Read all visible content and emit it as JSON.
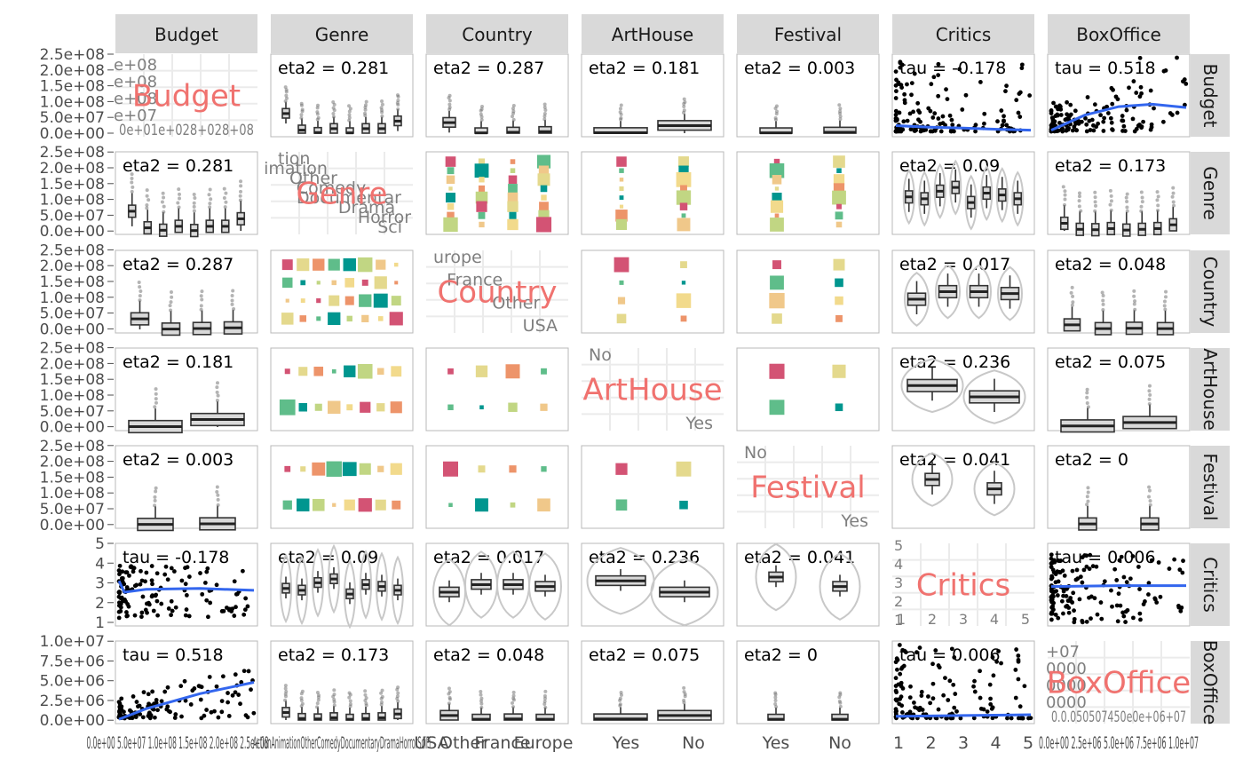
{
  "chart_data": {
    "type": "scatter",
    "chart_kind": "generalized pairs plot (7x7 matrix)",
    "variables": [
      "Budget",
      "Genre",
      "Country",
      "ArtHouse",
      "Festival",
      "Critics",
      "BoxOffice"
    ],
    "levels": {
      "Genre": [
        "Action",
        "Animation",
        "Other",
        "Comedy",
        "Documentary",
        "Drama",
        "Horror",
        "SciFi"
      ],
      "Genre_visible_labels": [
        "tion",
        "imation",
        "Other",
        "Comedy",
        "Documentar",
        "Drama",
        "Horror",
        "Sci"
      ],
      "Country": [
        "Europe",
        "France",
        "Other",
        "USA"
      ],
      "Country_visible_labels": [
        "urope",
        "France",
        "Other",
        "USA"
      ],
      "ArtHouse": [
        "No",
        "Yes"
      ],
      "Festival": [
        "No",
        "Yes"
      ]
    },
    "y_ticks": {
      "Budget": [
        "2.5e+08",
        "2.0e+08",
        "1.5e+08",
        "1.0e+08",
        "5.0e+07",
        "0.0e+00"
      ],
      "Critics": [
        "5",
        "4",
        "3",
        "2",
        "1"
      ],
      "BoxOffice": [
        "1.0e+07",
        "7.5e+06",
        "5.0e+06",
        "2.5e+06",
        "0.0e+00"
      ]
    },
    "x_ticks": {
      "Budget": "0.0e+00  5.0e+07  1.0e+08  1.5e+08  2.0e+08  2.5e+08",
      "Genre": "ActionAnimationOtherComedyDocumentaryDramaHorrorSciFi",
      "Country": [
        "USA",
        "Other",
        "France",
        "Europe"
      ],
      "ArtHouse": [
        "Yes",
        "No"
      ],
      "Festival": [
        "Yes",
        "No"
      ],
      "Critics": [
        "1",
        "2",
        "3",
        "4",
        "5"
      ],
      "BoxOffice": "0.0e+00  2.5e+06  5.0e+06  7.5e+06  1.0e+07"
    },
    "diag_mini_labels": {
      "Budget_y": [
        "e+08",
        "e+08",
        "e+08",
        "e+07"
      ],
      "Budget_x": "0e+01e+028+028+08",
      "BoxOffice_y": [
        "+07",
        "0000",
        "0000",
        "0000"
      ],
      "BoxOffice_x": "0.0.050507450e0e+06+07",
      "Critics_y": [
        "5",
        "4",
        "3",
        "2",
        "1"
      ],
      "Critics_x": [
        "1",
        "2",
        "3",
        "4",
        "5"
      ]
    },
    "pair_stats": [
      {
        "row": "Budget",
        "col": "Genre",
        "label": "eta2 = 0.281"
      },
      {
        "row": "Budget",
        "col": "Country",
        "label": "eta2 = 0.287"
      },
      {
        "row": "Budget",
        "col": "ArtHouse",
        "label": "eta2 = 0.181"
      },
      {
        "row": "Budget",
        "col": "Festival",
        "label": "eta2 = 0.003"
      },
      {
        "row": "Budget",
        "col": "Critics",
        "label": "tau = -0.178"
      },
      {
        "row": "Budget",
        "col": "BoxOffice",
        "label": "tau = 0.518"
      },
      {
        "row": "Genre",
        "col": "Budget",
        "label": "eta2 = 0.281"
      },
      {
        "row": "Genre",
        "col": "Critics",
        "label": "eta2 = 0.09"
      },
      {
        "row": "Genre",
        "col": "BoxOffice",
        "label": "eta2 = 0.173"
      },
      {
        "row": "Country",
        "col": "Budget",
        "label": "eta2 = 0.287"
      },
      {
        "row": "Country",
        "col": "Critics",
        "label": "eta2 = 0.017"
      },
      {
        "row": "Country",
        "col": "BoxOffice",
        "label": "eta2 = 0.048"
      },
      {
        "row": "ArtHouse",
        "col": "Budget",
        "label": "eta2 = 0.181"
      },
      {
        "row": "ArtHouse",
        "col": "Critics",
        "label": "eta2 = 0.236"
      },
      {
        "row": "ArtHouse",
        "col": "BoxOffice",
        "label": "eta2 = 0.075"
      },
      {
        "row": "Festival",
        "col": "Budget",
        "label": "eta2 = 0.003"
      },
      {
        "row": "Festival",
        "col": "Critics",
        "label": "eta2 = 0.041"
      },
      {
        "row": "Festival",
        "col": "BoxOffice",
        "label": "eta2 = 0"
      },
      {
        "row": "Critics",
        "col": "Budget",
        "label": "tau = -0.178"
      },
      {
        "row": "Critics",
        "col": "Genre",
        "label": "eta2 = 0.09"
      },
      {
        "row": "Critics",
        "col": "Country",
        "label": "eta2 = 0.017"
      },
      {
        "row": "Critics",
        "col": "ArtHouse",
        "label": "eta2 = 0.236"
      },
      {
        "row": "Critics",
        "col": "Festival",
        "label": "eta2 = 0.041"
      },
      {
        "row": "Critics",
        "col": "BoxOffice",
        "label": "tau = 0.006"
      },
      {
        "row": "BoxOffice",
        "col": "Budget",
        "label": "tau = 0.518"
      },
      {
        "row": "BoxOffice",
        "col": "Genre",
        "label": "eta2 = 0.173"
      },
      {
        "row": "BoxOffice",
        "col": "Country",
        "label": "eta2 = 0.048"
      },
      {
        "row": "BoxOffice",
        "col": "ArtHouse",
        "label": "eta2 = 0.075"
      },
      {
        "row": "BoxOffice",
        "col": "Festival",
        "label": "eta2 = 0"
      },
      {
        "row": "BoxOffice",
        "col": "Critics",
        "label": "tau = 0.006"
      }
    ],
    "boxplot_medians": {
      "Budget_by_Genre": [
        65000000.0,
        10000000.0,
        2000000.0,
        15000000.0,
        1000000.0,
        15000000.0,
        15000000.0,
        40000000.0
      ],
      "Budget_by_Country": [
        35000000.0,
        1000000.0,
        3000000.0,
        5000000.0
      ],
      "Budget_by_ArtHouse": [
        1500000.0,
        25000000.0
      ],
      "Critics_by_Genre": [
        2.8,
        2.7,
        3.1,
        3.3,
        2.5,
        3.0,
        2.9,
        2.7
      ],
      "Critics_by_Country": [
        2.6,
        3.0,
        3.0,
        2.9
      ],
      "Critics_by_ArtHouse": [
        3.2,
        2.6
      ],
      "Critics_by_Festival": [
        3.4,
        2.9
      ],
      "BoxOffice_by_Genre": [
        1000000.0,
        200000.0,
        150000.0,
        300000.0,
        100000.0,
        200000.0,
        300000.0,
        800000.0
      ],
      "BoxOffice_by_Country": [
        600000.0,
        100000.0,
        150000.0,
        100000.0
      ],
      "BoxOffice_by_ArtHouse": [
        150000.0,
        600000.0
      ],
      "BoxOffice_by_Festival": [
        100000.0,
        100000.0
      ]
    },
    "smooth_trends": {
      "Budget_vs_BoxOffice": [
        [
          0.0,
          10000000.0
        ],
        [
          2500000.0,
          60000000.0
        ],
        [
          5000000.0,
          88000000.0
        ],
        [
          7500000.0,
          96000000.0
        ],
        [
          10000000.0,
          85000000.0
        ]
      ],
      "Budget_vs_Critics": [
        [
          1,
          25000000.0
        ],
        [
          2,
          20000000.0
        ],
        [
          3,
          17000000.0
        ],
        [
          4,
          13000000.0
        ],
        [
          5,
          10000000.0
        ]
      ],
      "Critics_vs_Budget": [
        [
          0.0,
          3.2
        ],
        [
          10000000.0,
          2.6
        ],
        [
          50000000.0,
          2.75
        ],
        [
          150000000.0,
          2.8
        ],
        [
          250000000.0,
          2.7
        ]
      ],
      "Critics_vs_BoxOffice": [
        [
          0.0,
          2.9
        ],
        [
          5000000.0,
          2.95
        ],
        [
          10000000.0,
          2.95
        ]
      ],
      "BoxOffice_vs_Budget": [
        [
          0.0,
          100000.0
        ],
        [
          50000000.0,
          1500000.0
        ],
        [
          150000000.0,
          3500000.0
        ],
        [
          250000000.0,
          5000000.0
        ]
      ],
      "BoxOffice_vs_Critics": [
        [
          1,
          500000.0
        ],
        [
          3,
          600000.0
        ],
        [
          5,
          700000.0
        ]
      ]
    },
    "mosaic_palette": [
      "#D35374",
      "#E4D98D",
      "#ED946A",
      "#5FBD8A",
      "#00968F",
      "#C1D683",
      "#F0C88A",
      "#F2DA8C"
    ],
    "smooth_color": "#3366EE",
    "diagonal_label_color": "#F0726F",
    "strip_color": "#D9D9D9",
    "legend": "none",
    "grid": true
  }
}
